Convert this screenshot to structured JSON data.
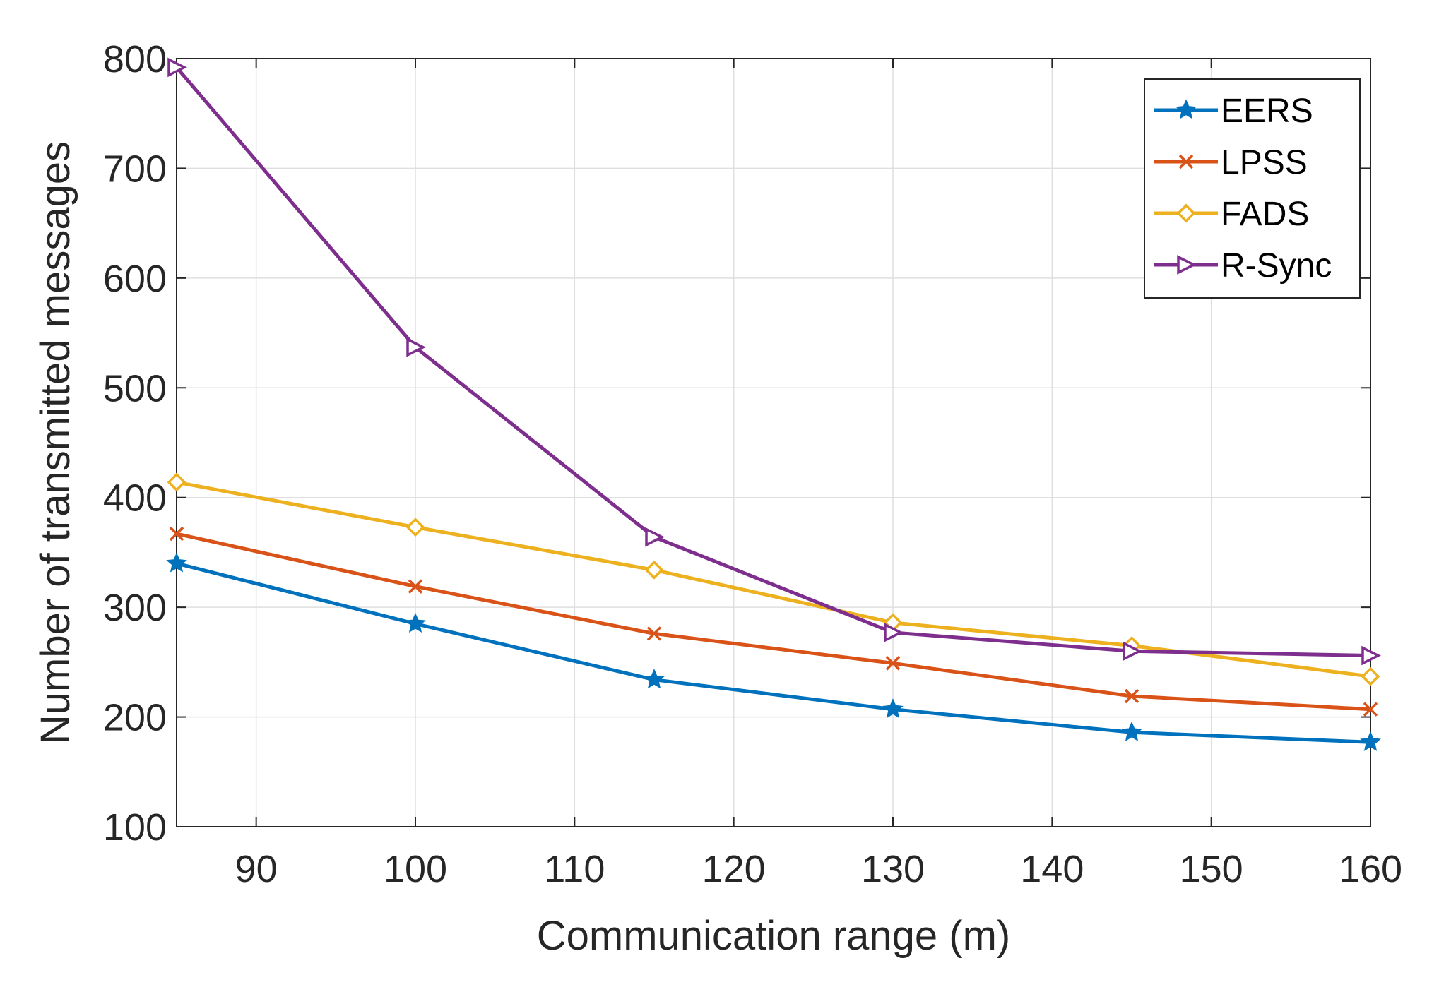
{
  "chart_data": {
    "type": "line",
    "title": "",
    "xlabel": "Communication range (m)",
    "ylabel": "Number of transmitted messages",
    "xlim": [
      85,
      160
    ],
    "ylim": [
      100,
      800
    ],
    "xticks": [
      90,
      100,
      110,
      120,
      130,
      140,
      150,
      160
    ],
    "yticks": [
      100,
      200,
      300,
      400,
      500,
      600,
      700,
      800
    ],
    "grid": true,
    "legend_position": "top-right",
    "x": [
      85,
      100,
      115,
      130,
      145,
      160
    ],
    "series": [
      {
        "name": "EERS",
        "color": "#0072BD",
        "marker": "star",
        "values": [
          340,
          285,
          234,
          207,
          186,
          177
        ]
      },
      {
        "name": " LPSS",
        "color": "#D95319",
        "marker": "x",
        "values": [
          367,
          319,
          276,
          249,
          219,
          207
        ]
      },
      {
        "name": "FADS",
        "color": "#EDB120",
        "marker": "diamond",
        "values": [
          414,
          373,
          334,
          286,
          265,
          237
        ]
      },
      {
        "name": "R-Sync",
        "color": "#7E2F8E",
        "marker": "triangle-right",
        "values": [
          792,
          537,
          364,
          277,
          260,
          256
        ]
      }
    ]
  }
}
